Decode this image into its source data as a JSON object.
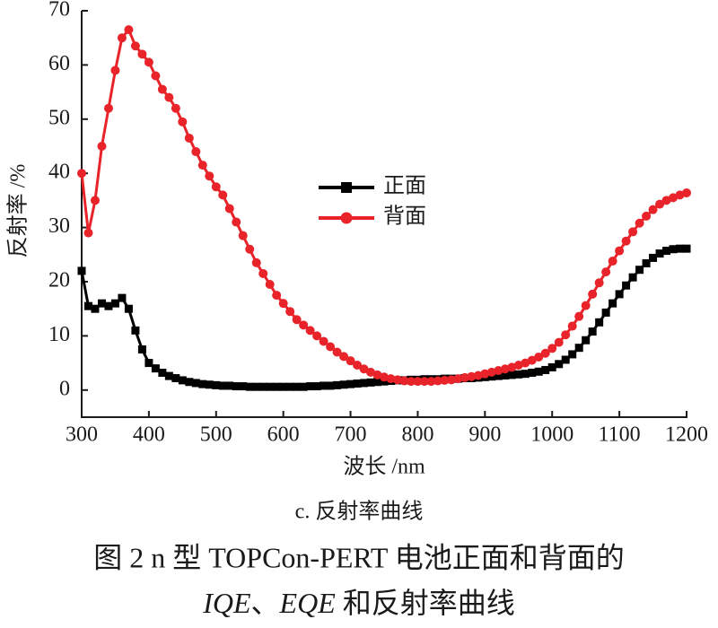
{
  "chart_data": {
    "type": "line",
    "xlabel": "波长 /nm",
    "ylabel": "反射率 /%",
    "subtitle": "c. 反射率曲线",
    "caption_line1": "图 2 n 型 TOPCon-PERT 电池正面和背面的",
    "caption_line2": [
      {
        "text": "IQE",
        "italic": true
      },
      {
        "text": "、",
        "italic": false
      },
      {
        "text": "EQE",
        "italic": true
      },
      {
        "text": " 和反射率曲线",
        "italic": false
      }
    ],
    "xlim": [
      300,
      1200
    ],
    "xticks": [
      300,
      400,
      500,
      600,
      700,
      800,
      900,
      1000,
      1100,
      1200
    ],
    "ylim": [
      -5,
      70
    ],
    "yticks": [
      0,
      10,
      20,
      30,
      40,
      50,
      60,
      70
    ],
    "grid": false,
    "legend": "center",
    "x": [
      300,
      310,
      320,
      330,
      340,
      350,
      360,
      370,
      380,
      390,
      400,
      410,
      420,
      430,
      440,
      450,
      460,
      470,
      480,
      490,
      500,
      510,
      520,
      530,
      540,
      550,
      560,
      570,
      580,
      590,
      600,
      610,
      620,
      630,
      640,
      650,
      660,
      670,
      680,
      690,
      700,
      710,
      720,
      730,
      740,
      750,
      760,
      770,
      780,
      790,
      800,
      810,
      820,
      830,
      840,
      850,
      860,
      870,
      880,
      890,
      900,
      910,
      920,
      930,
      940,
      950,
      960,
      970,
      980,
      990,
      1000,
      1010,
      1020,
      1030,
      1040,
      1050,
      1060,
      1070,
      1080,
      1090,
      1100,
      1110,
      1120,
      1130,
      1140,
      1150,
      1160,
      1170,
      1180,
      1190,
      1200
    ],
    "series": [
      {
        "name": "正面",
        "color": "#000000",
        "marker": "square",
        "values": [
          22,
          15.5,
          15,
          16,
          15.5,
          16,
          17,
          15,
          11,
          7.5,
          5,
          4,
          3.2,
          2.6,
          2.2,
          1.8,
          1.5,
          1.3,
          1.1,
          1.0,
          0.9,
          0.8,
          0.8,
          0.7,
          0.7,
          0.6,
          0.6,
          0.6,
          0.6,
          0.6,
          0.6,
          0.6,
          0.6,
          0.6,
          0.7,
          0.7,
          0.8,
          0.8,
          0.9,
          1.0,
          1.1,
          1.2,
          1.3,
          1.4,
          1.5,
          1.6,
          1.7,
          1.8,
          1.8,
          1.9,
          1.9,
          2.0,
          2.0,
          2.0,
          2.1,
          2.1,
          2.1,
          2.2,
          2.2,
          2.3,
          2.4,
          2.5,
          2.6,
          2.7,
          2.8,
          2.9,
          3.0,
          3.2,
          3.4,
          3.7,
          4.2,
          4.8,
          5.6,
          6.6,
          7.8,
          9.2,
          10.8,
          12.5,
          14.3,
          16.0,
          17.7,
          19.3,
          20.8,
          22.2,
          23.4,
          24.4,
          25.2,
          25.7,
          26.0,
          26.1,
          26.1
        ]
      },
      {
        "name": "背面",
        "color": "#e8232a",
        "marker": "circle",
        "values": [
          40,
          29,
          35,
          45,
          52,
          59,
          65,
          66.5,
          63.5,
          62,
          60.5,
          58,
          55.5,
          54,
          52,
          49.5,
          46.5,
          44,
          41.5,
          39.5,
          37.5,
          36,
          33.5,
          31,
          28.5,
          26,
          23.5,
          21.5,
          19.5,
          17.5,
          16,
          14.5,
          13,
          12,
          11,
          10,
          9,
          8,
          7,
          6.2,
          5.4,
          4.6,
          3.9,
          3.3,
          2.8,
          2.4,
          2.1,
          1.9,
          1.7,
          1.6,
          1.6,
          1.6,
          1.6,
          1.7,
          1.8,
          1.9,
          2.1,
          2.3,
          2.5,
          2.7,
          3.0,
          3.3,
          3.6,
          3.9,
          4.2,
          4.6,
          5.0,
          5.5,
          6.1,
          6.8,
          7.7,
          8.8,
          10.2,
          11.8,
          13.6,
          15.6,
          17.7,
          19.8,
          21.8,
          23.8,
          25.7,
          27.5,
          29.2,
          30.8,
          32.1,
          33.3,
          34.3,
          35.0,
          35.5,
          36.0,
          36.4
        ]
      }
    ]
  }
}
